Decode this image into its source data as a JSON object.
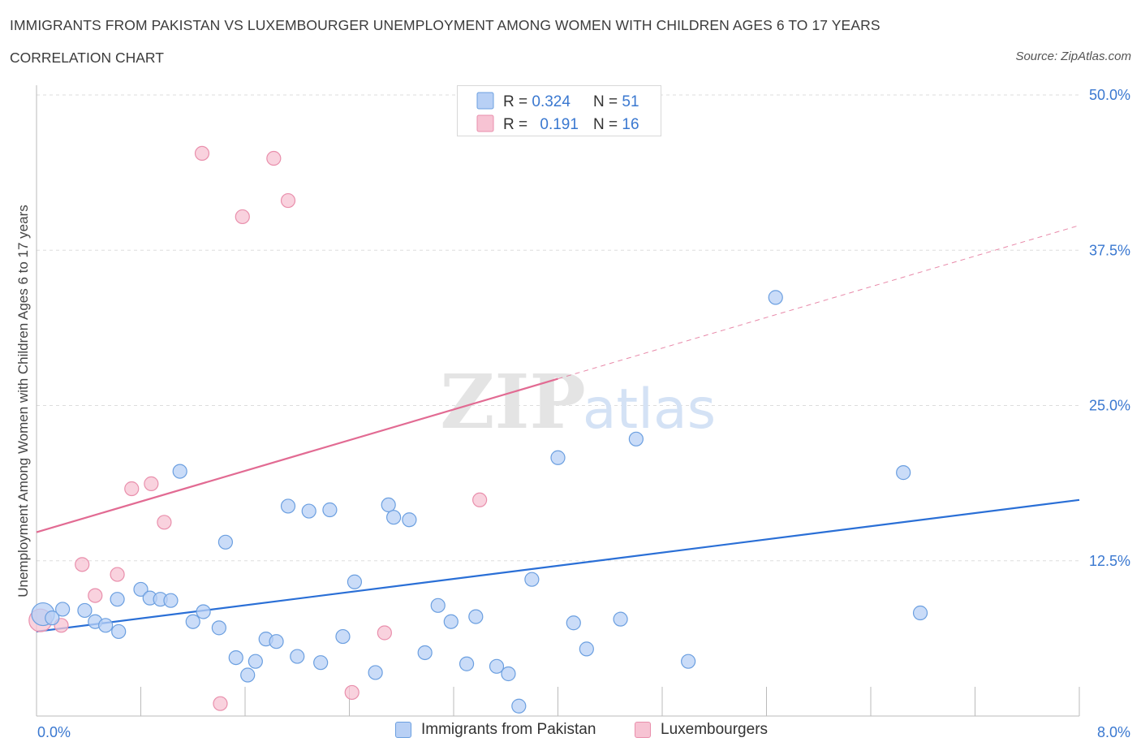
{
  "header": {
    "title": "IMMIGRANTS FROM PAKISTAN VS LUXEMBOURGER UNEMPLOYMENT AMONG WOMEN WITH CHILDREN AGES 6 TO 17 YEARS",
    "subtitle": "CORRELATION CHART",
    "source": "Source: ZipAtlas.com"
  },
  "watermark": {
    "zip": "ZIP",
    "atlas": "atlas"
  },
  "legend_top": {
    "rows": [
      {
        "r_label": "R = ",
        "r_value": "0.324",
        "n_label": "N = ",
        "n_value": "51"
      },
      {
        "r_label": "R = ",
        "r_value": "0.191",
        "n_label": "N = ",
        "n_value": "16"
      }
    ]
  },
  "legend_bottom": [
    {
      "label": "Immigrants from Pakistan"
    },
    {
      "label": "Luxembourgers"
    }
  ],
  "colors": {
    "blue_fill": "#b8d0f5",
    "blue_stroke": "#6b9fe0",
    "blue_line": "#2a6fd6",
    "pink_fill": "#f7c3d3",
    "pink_stroke": "#e98fac",
    "pink_line": "#e26b93",
    "axis_text": "#3a78d0",
    "grid": "#dddddd"
  },
  "chart_data": {
    "type": "scatter",
    "title": "IMMIGRANTS FROM PAKISTAN VS LUXEMBOURGER UNEMPLOYMENT AMONG WOMEN WITH CHILDREN AGES 6 TO 17 YEARS",
    "xlabel": "",
    "ylabel": "Unemployment Among Women with Children Ages 6 to 17 years",
    "xlim": [
      0,
      8
    ],
    "ylim": [
      0,
      50
    ],
    "x_tick_labels": [
      "0.0%",
      "8.0%"
    ],
    "y_ticks": [
      12.5,
      25.0,
      37.5,
      50.0
    ],
    "y_tick_labels": [
      "12.5%",
      "25.0%",
      "37.5%",
      "50.0%"
    ],
    "grid": true,
    "legend_position": "top-center",
    "series": [
      {
        "name": "Immigrants from Pakistan",
        "r": 0.324,
        "n": 51,
        "trend": {
          "x": [
            0.0,
            8.0
          ],
          "y": [
            6.8,
            17.4
          ]
        },
        "points": [
          [
            0.05,
            8.2
          ],
          [
            0.12,
            7.9
          ],
          [
            0.2,
            8.6
          ],
          [
            0.37,
            8.5
          ],
          [
            0.45,
            7.6
          ],
          [
            0.53,
            7.3
          ],
          [
            0.63,
            6.8
          ],
          [
            0.62,
            9.4
          ],
          [
            0.8,
            10.2
          ],
          [
            0.87,
            9.5
          ],
          [
            0.95,
            9.4
          ],
          [
            1.03,
            9.3
          ],
          [
            1.1,
            19.7
          ],
          [
            1.2,
            7.6
          ],
          [
            1.28,
            8.4
          ],
          [
            1.4,
            7.1
          ],
          [
            1.45,
            14.0
          ],
          [
            1.53,
            4.7
          ],
          [
            1.62,
            3.3
          ],
          [
            1.68,
            4.4
          ],
          [
            1.76,
            6.2
          ],
          [
            1.84,
            6.0
          ],
          [
            1.93,
            16.9
          ],
          [
            2.0,
            4.8
          ],
          [
            2.09,
            16.5
          ],
          [
            2.18,
            4.3
          ],
          [
            2.25,
            16.6
          ],
          [
            2.35,
            6.4
          ],
          [
            2.44,
            10.8
          ],
          [
            2.6,
            3.5
          ],
          [
            2.7,
            17.0
          ],
          [
            2.74,
            16.0
          ],
          [
            2.86,
            15.8
          ],
          [
            2.98,
            5.1
          ],
          [
            3.08,
            8.9
          ],
          [
            3.18,
            7.6
          ],
          [
            3.3,
            4.2
          ],
          [
            3.37,
            8.0
          ],
          [
            3.53,
            4.0
          ],
          [
            3.62,
            3.4
          ],
          [
            3.7,
            0.8
          ],
          [
            3.8,
            11.0
          ],
          [
            4.0,
            20.8
          ],
          [
            4.12,
            7.5
          ],
          [
            4.22,
            5.4
          ],
          [
            4.48,
            7.8
          ],
          [
            4.6,
            22.3
          ],
          [
            5.0,
            4.4
          ],
          [
            5.67,
            33.7
          ],
          [
            6.65,
            19.6
          ],
          [
            6.78,
            8.3
          ]
        ]
      },
      {
        "name": "Luxembourgers",
        "r": 0.191,
        "n": 16,
        "trend": {
          "x": [
            0.0,
            8.0
          ],
          "y": [
            14.8,
            39.5
          ]
        },
        "trend_solid_until_x": 4.0,
        "points": [
          [
            0.03,
            7.7
          ],
          [
            0.19,
            7.3
          ],
          [
            0.35,
            12.2
          ],
          [
            0.45,
            9.7
          ],
          [
            0.62,
            11.4
          ],
          [
            0.73,
            18.3
          ],
          [
            0.88,
            18.7
          ],
          [
            0.98,
            15.6
          ],
          [
            1.27,
            45.3
          ],
          [
            1.41,
            1.0
          ],
          [
            1.58,
            40.2
          ],
          [
            1.82,
            44.9
          ],
          [
            1.93,
            41.5
          ],
          [
            2.42,
            1.9
          ],
          [
            2.67,
            6.7
          ],
          [
            3.4,
            17.4
          ]
        ]
      }
    ]
  }
}
